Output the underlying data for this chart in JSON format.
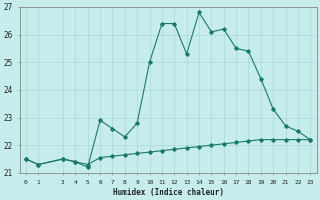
{
  "xlabel": "Humidex (Indice chaleur)",
  "bg_color": "#c6ecec",
  "line_color": "#1a7a6a",
  "grid_color": "#a8d8d8",
  "ylim": [
    21,
    27
  ],
  "yticks": [
    21,
    22,
    23,
    24,
    25,
    26,
    27
  ],
  "xlim": [
    -0.5,
    23.5
  ],
  "x_ticks": [
    0,
    1,
    3,
    4,
    5,
    6,
    7,
    8,
    9,
    10,
    11,
    12,
    13,
    14,
    15,
    16,
    17,
    18,
    19,
    20,
    21,
    22,
    23
  ],
  "line1_x": [
    0,
    1,
    3,
    4,
    5,
    6,
    7,
    8,
    9,
    10,
    11,
    12,
    13,
    14,
    15,
    16,
    17,
    18,
    19,
    20,
    21,
    22,
    23
  ],
  "line1_y": [
    21.5,
    21.3,
    21.5,
    21.4,
    21.3,
    21.55,
    21.6,
    21.65,
    21.7,
    21.75,
    21.8,
    21.85,
    21.9,
    21.95,
    22.0,
    22.05,
    22.1,
    22.15,
    22.2,
    22.2,
    22.2,
    22.2,
    22.2
  ],
  "line2_x": [
    0,
    1,
    3,
    4,
    5,
    6,
    7,
    8,
    9,
    10,
    11,
    12,
    13,
    14,
    15,
    16,
    17,
    18,
    19,
    20,
    21,
    22,
    23
  ],
  "line2_y": [
    21.5,
    21.3,
    21.5,
    21.4,
    21.2,
    22.9,
    22.6,
    22.3,
    22.8,
    25.0,
    26.4,
    26.4,
    25.3,
    26.8,
    26.1,
    26.2,
    25.5,
    25.4,
    24.4,
    23.3,
    22.7,
    22.5,
    22.2
  ]
}
